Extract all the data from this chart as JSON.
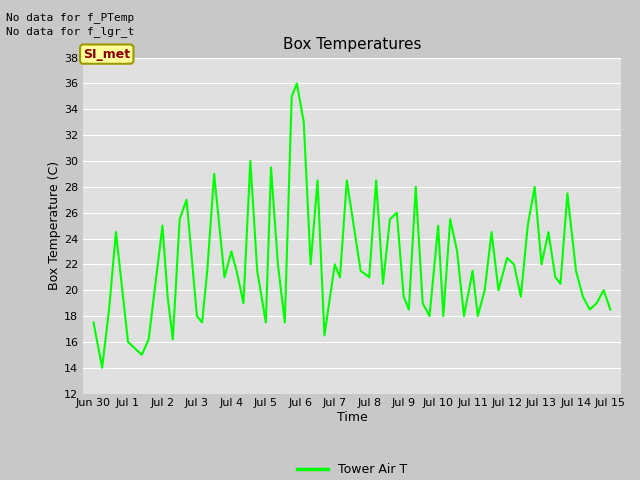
{
  "title": "Box Temperatures",
  "xlabel": "Time",
  "ylabel": "Box Temperature (C)",
  "text_no_data1": "No data for f_PTemp",
  "text_no_data2": "No data for f_lgr_t",
  "si_met_label": "SI_met",
  "ylim": [
    12,
    38
  ],
  "yticks": [
    12,
    14,
    16,
    18,
    20,
    22,
    24,
    26,
    28,
    30,
    32,
    34,
    36,
    38
  ],
  "x_tick_labels": [
    "Jun 30",
    "Jul 1",
    "Jul 2",
    "Jul 3",
    "Jul 4",
    "Jul 5",
    "Jul 6",
    "Jul 7",
    "Jul 8",
    "Jul 9",
    "Jul 10",
    "Jul 11",
    "Jul 12",
    "Jul 13",
    "Jul 14",
    "Jul 15"
  ],
  "line_color": "#00ff00",
  "line_width": 1.5,
  "fig_bg_color": "#c8c8c8",
  "plot_bg_color": "#e0e0e0",
  "grid_color": "#ffffff",
  "legend_label": "Tower Air T",
  "x_values": [
    0,
    0.25,
    0.45,
    0.65,
    1.0,
    1.2,
    1.4,
    1.6,
    2.0,
    2.15,
    2.3,
    2.5,
    2.7,
    3.0,
    3.15,
    3.3,
    3.5,
    3.8,
    4.0,
    4.15,
    4.35,
    4.55,
    4.75,
    5.0,
    5.15,
    5.35,
    5.55,
    5.75,
    5.9,
    6.1,
    6.3,
    6.5,
    6.7,
    7.0,
    7.15,
    7.35,
    7.55,
    7.75,
    8.0,
    8.2,
    8.4,
    8.6,
    8.8,
    9.0,
    9.15,
    9.35,
    9.55,
    9.75,
    10.0,
    10.15,
    10.35,
    10.55,
    10.75,
    11.0,
    11.15,
    11.35,
    11.55,
    11.75,
    12.0,
    12.2,
    12.4,
    12.6,
    12.8,
    13.0,
    13.2,
    13.4,
    13.55,
    13.75,
    14.0,
    14.2,
    14.4,
    14.6,
    14.8,
    15.0
  ],
  "y_values": [
    17.5,
    14.0,
    18.5,
    24.5,
    16.0,
    15.5,
    15.0,
    16.2,
    25.0,
    19.5,
    16.2,
    25.5,
    27.0,
    18.0,
    17.5,
    21.5,
    29.0,
    21.0,
    23.0,
    21.5,
    19.0,
    30.0,
    21.5,
    17.5,
    29.5,
    22.0,
    17.5,
    35.0,
    36.0,
    33.0,
    22.0,
    28.5,
    16.5,
    22.0,
    21.0,
    28.5,
    25.0,
    21.5,
    21.0,
    28.5,
    20.5,
    25.5,
    26.0,
    19.5,
    18.5,
    28.0,
    19.0,
    18.0,
    25.0,
    18.0,
    25.5,
    23.0,
    18.0,
    21.5,
    18.0,
    20.0,
    24.5,
    20.0,
    22.5,
    22.0,
    19.5,
    25.0,
    28.0,
    22.0,
    24.5,
    21.0,
    20.5,
    27.5,
    21.5,
    19.5,
    18.5,
    19.0,
    20.0,
    18.5
  ]
}
